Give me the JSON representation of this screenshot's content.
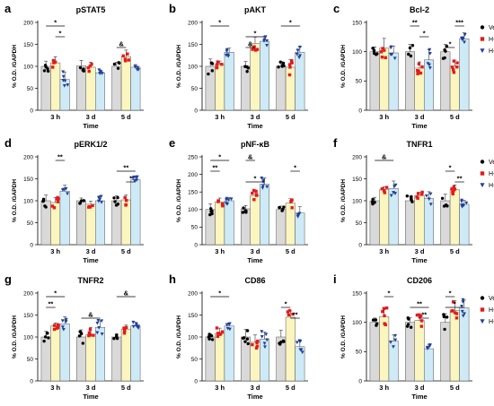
{
  "figure": {
    "groups": [
      "Veh",
      "H-Ox-Veh",
      "H-Ox-GH"
    ],
    "group_colors": [
      "#000000",
      "#e41a1c",
      "#1f3f9a"
    ],
    "bar_fills": [
      "#d9d9d9",
      "#fbf5bf",
      "#cfeaf7"
    ],
    "legend_markers": [
      "circle-marker-icon",
      "square-marker-icon",
      "triangle-down-marker-icon"
    ],
    "legend_panels": [
      "c",
      "f",
      "i"
    ]
  },
  "chart_data": [
    {
      "panel": "a",
      "type": "bar",
      "title": "pSTAT5",
      "categories": [
        "3 h",
        "3 d",
        "5 d"
      ],
      "xlabel": "Time",
      "ylabel": "% O.D. /GAPDH",
      "ylim": [
        0,
        200
      ],
      "yticks": [
        0,
        50,
        100,
        150,
        200
      ],
      "series": [
        {
          "name": "Veh",
          "values": [
            100,
            101,
            100
          ]
        },
        {
          "name": "H-Ox-Veh",
          "values": [
            108,
            98,
            122
          ]
        },
        {
          "name": "H-Ox-GH",
          "values": [
            70,
            85,
            98
          ]
        }
      ],
      "annotations": [
        {
          "text": "*",
          "from": "3 h Veh",
          "to": "3 h H-Ox-GH"
        },
        {
          "text": "*",
          "from": "3 h H-Ox-Veh",
          "to": "3 h H-Ox-GH"
        },
        {
          "text": "&",
          "from": "5 d Veh",
          "to": "5 d H-Ox-Veh"
        }
      ]
    },
    {
      "panel": "b",
      "type": "bar",
      "title": "pAKT",
      "categories": [
        "3 h",
        "3 d",
        "5 d"
      ],
      "xlabel": "Time",
      "ylabel": "% O.D. /GAPDH",
      "ylim": [
        0,
        200
      ],
      "yticks": [
        0,
        50,
        100,
        150,
        200
      ],
      "series": [
        {
          "name": "Veh",
          "values": [
            100,
            100,
            100
          ]
        },
        {
          "name": "H-Ox-Veh",
          "values": [
            104,
            152,
            98
          ]
        },
        {
          "name": "H-Ox-GH",
          "values": [
            132,
            157,
            132
          ]
        }
      ],
      "annotations": [
        {
          "text": "*",
          "from": "3 h Veh",
          "to": "3 h H-Ox-GH"
        },
        {
          "text": "*",
          "from": "3 d Veh",
          "to": "3 d H-Ox-GH"
        },
        {
          "text": "&",
          "from": "3 d Veh",
          "to": "3 d H-Ox-Veh"
        },
        {
          "text": "*",
          "from": "5 d Veh",
          "to": "5 d H-Ox-GH"
        }
      ]
    },
    {
      "panel": "c",
      "type": "bar",
      "title": "Bcl-2",
      "categories": [
        "3 h",
        "3 d",
        "5 d"
      ],
      "xlabel": "Time",
      "ylabel": "% O.D. /GAPDH",
      "ylim": [
        0,
        150
      ],
      "yticks": [
        0,
        50,
        100,
        150
      ],
      "series": [
        {
          "name": "Veh",
          "values": [
            100,
            100,
            100
          ]
        },
        {
          "name": "H-Ox-Veh",
          "values": [
            106,
            72,
            75
          ]
        },
        {
          "name": "H-Ox-GH",
          "values": [
            98,
            86,
            122
          ]
        }
      ],
      "annotations": [
        {
          "text": "**",
          "from": "3 d Veh",
          "to": "3 d H-Ox-Veh"
        },
        {
          "text": "*",
          "from": "3 d H-Ox-Veh",
          "to": "3 d H-Ox-GH"
        },
        {
          "text": "*",
          "from": "5 d Veh",
          "to": "5 d H-Ox-Veh"
        },
        {
          "text": "***",
          "from": "5 d H-Ox-Veh",
          "to": "5 d H-Ox-GH"
        }
      ]
    },
    {
      "panel": "d",
      "type": "bar",
      "title": "pERK1/2",
      "categories": [
        "3 h",
        "3 d",
        "5 d"
      ],
      "xlabel": "Time",
      "ylabel": "% O.D. /GAPDH",
      "ylim": [
        0,
        200
      ],
      "yticks": [
        0,
        50,
        100,
        150,
        200
      ],
      "series": [
        {
          "name": "Veh",
          "values": [
            100,
            100,
            100
          ]
        },
        {
          "name": "H-Ox-Veh",
          "values": [
            96,
            92,
            102
          ]
        },
        {
          "name": "H-Ox-GH",
          "values": [
            122,
            100,
            148
          ]
        }
      ],
      "annotations": [
        {
          "text": "**",
          "from": "3 h H-Ox-Veh",
          "to": "3 h H-Ox-GH"
        },
        {
          "text": "**",
          "from": "5 d Veh",
          "to": "5 d H-Ox-GH"
        },
        {
          "text": "*",
          "from": "5 d H-Ox-Veh",
          "to": "5 d H-Ox-GH"
        }
      ]
    },
    {
      "panel": "e",
      "type": "bar",
      "title": "pNF-κB",
      "categories": [
        "3 h",
        "3 d",
        "5 d"
      ],
      "xlabel": "Time",
      "ylabel": "% O.D. /GAPDH",
      "ylim": [
        0,
        250
      ],
      "yticks": [
        0,
        50,
        100,
        150,
        200,
        250
      ],
      "series": [
        {
          "name": "Veh",
          "values": [
            100,
            102,
            100
          ]
        },
        {
          "name": "H-Ox-Veh",
          "values": [
            122,
            140,
            118
          ]
        },
        {
          "name": "H-Ox-GH",
          "values": [
            125,
            172,
            90
          ]
        }
      ],
      "annotations": [
        {
          "text": "*",
          "from": "3 h Veh",
          "to": "3 h H-Ox-GH"
        },
        {
          "text": "**",
          "from": "3 h Veh",
          "to": "3 h H-Ox-Veh"
        },
        {
          "text": "*",
          "from": "3 d Veh",
          "to": "3 d H-Ox-GH"
        },
        {
          "text": "&",
          "from": "3 d Veh",
          "to": "3 d H-Ox-Veh"
        },
        {
          "text": "*",
          "from": "5 d H-Ox-Veh",
          "to": "5 d H-Ox-GH"
        }
      ]
    },
    {
      "panel": "f",
      "type": "bar",
      "title": "TNFR1",
      "categories": [
        "3 h",
        "3 d",
        "5 d"
      ],
      "xlabel": "Time",
      "ylabel": "% O.D. /GAPDH",
      "ylim": [
        0,
        200
      ],
      "yticks": [
        0,
        50,
        100,
        150,
        200
      ],
      "series": [
        {
          "name": "Veh",
          "values": [
            100,
            100,
            100
          ]
        },
        {
          "name": "H-Ox-Veh",
          "values": [
            125,
            112,
            125
          ]
        },
        {
          "name": "H-Ox-GH",
          "values": [
            128,
            105,
            92
          ]
        }
      ],
      "annotations": [
        {
          "text": "&",
          "from": "3 h Veh",
          "to": "3 h H-Ox-GH"
        },
        {
          "text": "*",
          "from": "5 d Veh",
          "to": "5 d H-Ox-Veh"
        },
        {
          "text": "**",
          "from": "5 d H-Ox-Veh",
          "to": "5 d H-Ox-GH"
        }
      ]
    },
    {
      "panel": "g",
      "type": "bar",
      "title": "TNFR2",
      "categories": [
        "3 h",
        "3 d",
        "5 d"
      ],
      "xlabel": "Time",
      "ylabel": "% O.D. /GAPDH",
      "ylim": [
        0,
        200
      ],
      "yticks": [
        0,
        50,
        100,
        150,
        200
      ],
      "series": [
        {
          "name": "Veh",
          "values": [
            100,
            100,
            100
          ]
        },
        {
          "name": "H-Ox-Veh",
          "values": [
            125,
            105,
            118
          ]
        },
        {
          "name": "H-Ox-GH",
          "values": [
            130,
            122,
            125
          ]
        }
      ],
      "annotations": [
        {
          "text": "*",
          "from": "3 h Veh",
          "to": "3 h H-Ox-GH"
        },
        {
          "text": "**",
          "from": "3 h Veh",
          "to": "3 h H-Ox-Veh"
        },
        {
          "text": "&",
          "from": "3 d Veh",
          "to": "3 d H-Ox-GH"
        },
        {
          "text": "&",
          "from": "5 d Veh",
          "to": "5 d H-Ox-GH"
        }
      ]
    },
    {
      "panel": "h",
      "type": "bar",
      "title": "CD86",
      "categories": [
        "3 h",
        "3 d",
        "5 d"
      ],
      "xlabel": "Time",
      "ylabel": "% O.D. /GAPDH",
      "ylim": [
        0,
        200
      ],
      "yticks": [
        0,
        50,
        100,
        150,
        200
      ],
      "series": [
        {
          "name": "Veh",
          "values": [
            100,
            100,
            100
          ]
        },
        {
          "name": "H-Ox-Veh",
          "values": [
            108,
            88,
            145
          ]
        },
        {
          "name": "H-Ox-GH",
          "values": [
            125,
            95,
            78
          ]
        }
      ],
      "annotations": [
        {
          "text": "*",
          "from": "3 h Veh",
          "to": "3 h H-Ox-GH"
        },
        {
          "text": "*",
          "from": "5 d Veh",
          "to": "5 d H-Ox-Veh"
        },
        {
          "text": "**",
          "from": "5 d H-Ox-Veh",
          "to": "5 d H-Ox-GH"
        }
      ]
    },
    {
      "panel": "i",
      "type": "bar",
      "title": "CD206",
      "categories": [
        "3 h",
        "3 d",
        "5 d"
      ],
      "xlabel": "Time",
      "ylabel": "% O.D. /GAPDH",
      "ylim": [
        0,
        150
      ],
      "yticks": [
        0,
        50,
        100,
        150
      ],
      "series": [
        {
          "name": "Veh",
          "values": [
            100,
            100,
            100
          ]
        },
        {
          "name": "H-Ox-Veh",
          "values": [
            110,
            103,
            120
          ]
        },
        {
          "name": "H-Ox-GH",
          "values": [
            68,
            55,
            125
          ]
        }
      ],
      "annotations": [
        {
          "text": "*",
          "from": "3 h H-Ox-Veh",
          "to": "3 h H-Ox-GH"
        },
        {
          "text": "**",
          "from": "3 d Veh",
          "to": "3 d H-Ox-GH"
        },
        {
          "text": "**",
          "from": "3 d H-Ox-Veh",
          "to": "3 d H-Ox-GH"
        },
        {
          "text": "*",
          "from": "5 d Veh",
          "to": "5 d H-Ox-Veh"
        },
        {
          "text": "*",
          "from": "5 d Veh",
          "to": "5 d H-Ox-GH"
        }
      ]
    }
  ]
}
